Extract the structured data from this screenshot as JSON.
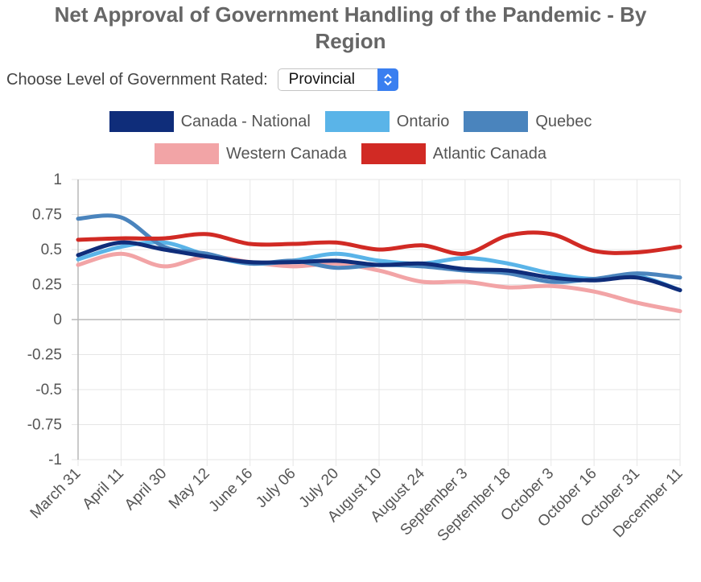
{
  "title": [
    "Net Approval of Government Handling of the Pandemic - By",
    "Region"
  ],
  "control": {
    "label": "Choose Level of Government Rated:",
    "selected": "Provincial",
    "button_icon": "up-down-chevron-icon"
  },
  "chart_data": {
    "type": "line",
    "ylim": [
      -1,
      1
    ],
    "yticks": [
      "1",
      "0.75",
      "0.5",
      "0.25",
      "0",
      "-0.25",
      "-0.5",
      "-0.75",
      "-1"
    ],
    "ytick_values": [
      1,
      0.75,
      0.5,
      0.25,
      0,
      -0.25,
      -0.5,
      -0.75,
      -1
    ],
    "categories": [
      "March 31",
      "April 11",
      "April 30",
      "May 12",
      "June 16",
      "July 06",
      "July 20",
      "August 10",
      "August 24",
      "September 3",
      "September 18",
      "October 3",
      "October 16",
      "October 31",
      "December 11"
    ],
    "grid": true,
    "legend_position": "top",
    "series": [
      {
        "name": "Canada - National",
        "color": "#0f2d7a",
        "values": [
          0.46,
          0.55,
          0.5,
          0.45,
          0.41,
          0.41,
          0.42,
          0.39,
          0.4,
          0.36,
          0.35,
          0.3,
          0.28,
          0.3,
          0.21
        ]
      },
      {
        "name": "Ontario",
        "color": "#5ab4e8",
        "values": [
          0.43,
          0.52,
          0.55,
          0.46,
          0.4,
          0.42,
          0.47,
          0.42,
          0.4,
          0.44,
          0.4,
          0.33,
          0.29,
          0.31,
          0.21
        ]
      },
      {
        "name": "Quebec",
        "color": "#4a84bd",
        "values": [
          0.72,
          0.73,
          0.52,
          0.47,
          0.4,
          0.42,
          0.37,
          0.39,
          0.38,
          0.35,
          0.33,
          0.27,
          0.29,
          0.33,
          0.3
        ]
      },
      {
        "name": "Western Canada",
        "color": "#f2a4a6",
        "values": [
          0.39,
          0.47,
          0.38,
          0.45,
          0.41,
          0.38,
          0.4,
          0.35,
          0.27,
          0.27,
          0.23,
          0.24,
          0.2,
          0.12,
          0.06
        ]
      },
      {
        "name": "Atlantic Canada",
        "color": "#d12a24",
        "values": [
          0.57,
          0.58,
          0.58,
          0.61,
          0.54,
          0.54,
          0.55,
          0.5,
          0.53,
          0.47,
          0.6,
          0.61,
          0.49,
          0.48,
          0.52
        ]
      }
    ]
  }
}
